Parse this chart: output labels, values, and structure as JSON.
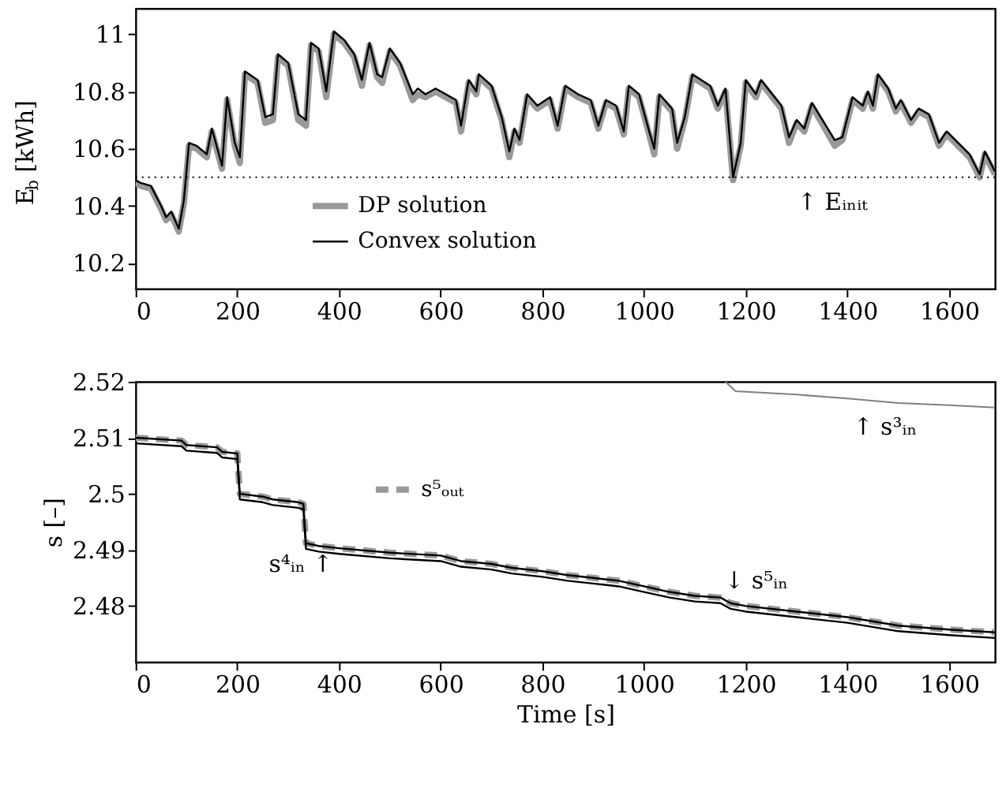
{
  "chart_data": [
    {
      "type": "line",
      "ylabel": "E$_{b}$ [kWh]",
      "xlim": [
        0,
        1690
      ],
      "ylim": [
        10.11,
        11.09
      ],
      "xticks": [
        0,
        200,
        400,
        600,
        800,
        1000,
        1200,
        1400,
        1600
      ],
      "yticks": [
        10.2,
        10.4,
        10.6,
        10.8,
        11
      ],
      "grid": false,
      "legend": "bottom",
      "x": [
        0,
        10,
        30,
        50,
        60,
        70,
        85,
        95,
        105,
        120,
        140,
        150,
        170,
        180,
        195,
        205,
        215,
        240,
        255,
        270,
        280,
        300,
        320,
        335,
        345,
        360,
        375,
        390,
        410,
        430,
        445,
        460,
        475,
        485,
        500,
        520,
        545,
        555,
        570,
        590,
        630,
        640,
        655,
        670,
        675,
        700,
        720,
        735,
        745,
        755,
        770,
        790,
        815,
        830,
        845,
        870,
        895,
        910,
        925,
        945,
        960,
        970,
        990,
        1010,
        1020,
        1030,
        1055,
        1065,
        1080,
        1095,
        1130,
        1145,
        1160,
        1175,
        1190,
        1200,
        1220,
        1230,
        1270,
        1285,
        1300,
        1315,
        1330,
        1375,
        1390,
        1410,
        1430,
        1440,
        1450,
        1460,
        1480,
        1495,
        1505,
        1525,
        1540,
        1560,
        1580,
        1595,
        1640,
        1660,
        1670,
        1690
      ],
      "series": [
        {
          "name": "DP solution",
          "color": "#999999",
          "values": [
            10.48,
            10.47,
            10.46,
            10.39,
            10.35,
            10.37,
            10.31,
            10.41,
            10.61,
            10.6,
            10.57,
            10.66,
            10.53,
            10.77,
            10.61,
            10.55,
            10.86,
            10.83,
            10.69,
            10.7,
            10.92,
            10.89,
            10.7,
            10.68,
            10.96,
            10.94,
            10.78,
            11.0,
            10.97,
            10.92,
            10.82,
            10.96,
            10.85,
            10.83,
            10.94,
            10.89,
            10.77,
            10.79,
            10.78,
            10.8,
            10.76,
            10.66,
            10.83,
            10.79,
            10.85,
            10.81,
            10.7,
            10.57,
            10.66,
            10.62,
            10.78,
            10.74,
            10.77,
            10.67,
            10.81,
            10.78,
            10.76,
            10.67,
            10.76,
            10.74,
            10.65,
            10.81,
            10.78,
            10.65,
            10.58,
            10.78,
            10.73,
            10.6,
            10.7,
            10.85,
            10.81,
            10.74,
            10.8,
            10.49,
            10.61,
            10.83,
            10.78,
            10.83,
            10.74,
            10.62,
            10.69,
            10.66,
            10.75,
            10.61,
            10.63,
            10.77,
            10.74,
            10.79,
            10.74,
            10.85,
            10.8,
            10.73,
            10.76,
            10.69,
            10.73,
            10.71,
            10.61,
            10.65,
            10.57,
            10.5,
            10.58,
            10.51
          ]
        },
        {
          "name": "Convex solution",
          "color": "#000000",
          "values": [
            10.49,
            10.48,
            10.47,
            10.4,
            10.36,
            10.38,
            10.32,
            10.42,
            10.62,
            10.61,
            10.58,
            10.67,
            10.54,
            10.78,
            10.62,
            10.57,
            10.87,
            10.84,
            10.71,
            10.72,
            10.93,
            10.9,
            10.72,
            10.7,
            10.97,
            10.95,
            10.8,
            11.01,
            10.98,
            10.93,
            10.84,
            10.97,
            10.86,
            10.85,
            10.95,
            10.9,
            10.79,
            10.81,
            10.79,
            10.81,
            10.77,
            10.68,
            10.84,
            10.8,
            10.86,
            10.82,
            10.71,
            10.59,
            10.67,
            10.63,
            10.79,
            10.75,
            10.78,
            10.68,
            10.82,
            10.79,
            10.77,
            10.68,
            10.77,
            10.75,
            10.66,
            10.82,
            10.79,
            10.66,
            10.6,
            10.79,
            10.74,
            10.62,
            10.71,
            10.86,
            10.82,
            10.75,
            10.81,
            10.5,
            10.62,
            10.84,
            10.79,
            10.84,
            10.75,
            10.64,
            10.7,
            10.67,
            10.76,
            10.63,
            10.64,
            10.78,
            10.75,
            10.8,
            10.75,
            10.86,
            10.81,
            10.74,
            10.77,
            10.7,
            10.74,
            10.72,
            10.62,
            10.66,
            10.58,
            10.51,
            10.59,
            10.52
          ]
        }
      ],
      "ref_lines": [
        {
          "axis": "y",
          "value": 10.5,
          "line_style": "dotted",
          "color": "#000000"
        }
      ],
      "annotations": [
        "↑ Eᵢₙᵢₜ"
      ]
    },
    {
      "type": "line",
      "xlabel": "Time [s]",
      "ylabel": "s [–]",
      "xlim": [
        0,
        1690
      ],
      "ylim": [
        2.47,
        2.52
      ],
      "xticks": [
        0,
        200,
        400,
        600,
        800,
        1000,
        1200,
        1400,
        1600
      ],
      "yticks": [
        2.48,
        2.49,
        2.5,
        2.51,
        2.52
      ],
      "grid": false,
      "legend": "top left",
      "series": [
        {
          "name": "s⁵ₒᵤₜ",
          "color": "#999999",
          "line_style": "dashed",
          "x": [
            0,
            90,
            100,
            160,
            170,
            200,
            205,
            250,
            270,
            320,
            330,
            335,
            360,
            400,
            500,
            600,
            640,
            700,
            740,
            800,
            850,
            900,
            950,
            1000,
            1050,
            1100,
            1150,
            1170,
            1200,
            1300,
            1400,
            1500,
            1600,
            1690
          ],
          "values": [
            2.51,
            2.5095,
            2.5087,
            2.5083,
            2.5075,
            2.5072,
            2.5,
            2.4995,
            2.499,
            2.4985,
            2.4982,
            2.4912,
            2.4907,
            2.4903,
            2.4895,
            2.489,
            2.488,
            2.4875,
            2.4868,
            2.4862,
            2.4855,
            2.485,
            2.4845,
            2.4835,
            2.4825,
            2.4818,
            2.4815,
            2.4805,
            2.48,
            2.479,
            2.478,
            2.4765,
            2.4758,
            2.4753
          ]
        },
        {
          "color": "#000000",
          "x": [
            0,
            90,
            100,
            160,
            170,
            200,
            205,
            250,
            270,
            320,
            330,
            335,
            360,
            400,
            500,
            600,
            640,
            700,
            740,
            800,
            850,
            900,
            950,
            1000,
            1050,
            1100,
            1150,
            1170,
            1200,
            1300,
            1400,
            1500,
            1600,
            1690
          ],
          "values": [
            2.51,
            2.5095,
            2.5087,
            2.5083,
            2.5075,
            2.5072,
            2.5,
            2.4995,
            2.499,
            2.4985,
            2.4982,
            2.4912,
            2.4907,
            2.4903,
            2.4895,
            2.489,
            2.488,
            2.4875,
            2.4868,
            2.4862,
            2.4855,
            2.485,
            2.4845,
            2.4835,
            2.4825,
            2.4818,
            2.4815,
            2.4805,
            2.48,
            2.479,
            2.478,
            2.4765,
            2.4758,
            2.4753
          ]
        },
        {
          "color": "#000000",
          "x": [
            0,
            90,
            100,
            160,
            170,
            200,
            205,
            250,
            270,
            320,
            330,
            335,
            360,
            400,
            500,
            600,
            640,
            700,
            740,
            800,
            850,
            900,
            950,
            1000,
            1050,
            1100,
            1150,
            1170,
            1200,
            1300,
            1400,
            1500,
            1600,
            1690
          ],
          "values": [
            2.509,
            2.5085,
            2.5077,
            2.5073,
            2.5065,
            2.5062,
            2.499,
            2.4985,
            2.498,
            2.4975,
            2.4972,
            2.4902,
            2.4897,
            2.4893,
            2.4885,
            2.488,
            2.487,
            2.4865,
            2.4858,
            2.4852,
            2.4845,
            2.484,
            2.4835,
            2.4825,
            2.4815,
            2.4808,
            2.4805,
            2.4795,
            2.479,
            2.478,
            2.477,
            2.4755,
            2.4748,
            2.4743
          ]
        },
        {
          "color": "#808080",
          "x": [
            1160,
            1180,
            1300,
            1400,
            1500,
            1600,
            1690
          ],
          "values": [
            2.52,
            2.5183,
            2.5177,
            2.517,
            2.5162,
            2.5158,
            2.5154
          ]
        }
      ],
      "annotations": [
        "s⁴ᵢₙ ↑",
        "↓ s⁵ᵢₙ",
        "↑ s³ᵢₙ"
      ]
    }
  ]
}
